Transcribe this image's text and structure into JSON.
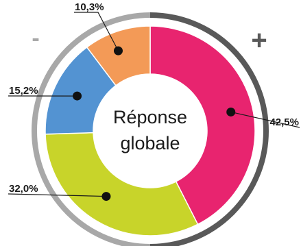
{
  "chart_data": {
    "type": "donut",
    "center_label": [
      "Réponse",
      "globale"
    ],
    "scale_minus": "-",
    "scale_plus": "+",
    "slices": [
      {
        "label": "42,5%",
        "value": 42.5,
        "color": "#e8246f"
      },
      {
        "label": "32,0%",
        "value": 32.0,
        "color": "#c8d42a"
      },
      {
        "label": "15,2%",
        "value": 15.2,
        "color": "#5393d2"
      },
      {
        "label": "10,3%",
        "value": 10.3,
        "color": "#f39a57"
      }
    ],
    "ring_colors": {
      "minus_side": "#a8a8a8",
      "plus_side": "#595959"
    },
    "sign_colors": {
      "minus": "#a8a8a8",
      "plus": "#595959"
    }
  }
}
